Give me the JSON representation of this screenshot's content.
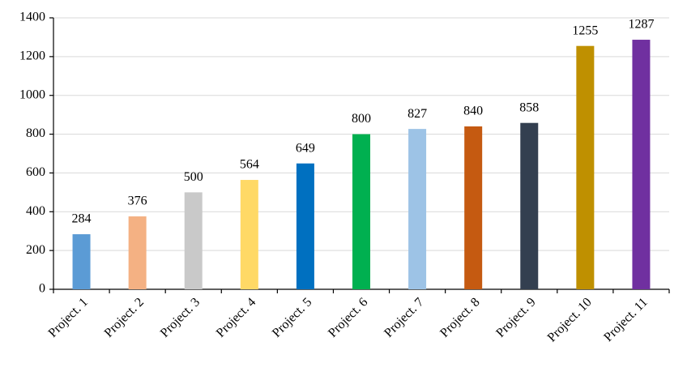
{
  "chart_data": {
    "type": "bar",
    "categories": [
      "Project. 1",
      "Project. 2",
      "Project. 3",
      "Project. 4",
      "Project. 5",
      "Project. 6",
      "Project. 7",
      "Project. 8",
      "Project. 9",
      "Project. 10",
      "Project. 11"
    ],
    "values": [
      284,
      376,
      500,
      564,
      649,
      800,
      827,
      840,
      858,
      1255,
      1287
    ],
    "colors": [
      "#5b9bd5",
      "#f4b183",
      "#c9c9c9",
      "#ffd966",
      "#0070c0",
      "#00b050",
      "#9dc3e6",
      "#c55a11",
      "#333f50",
      "#bf9000",
      "#7030a0"
    ],
    "ylim": [
      0,
      1400
    ],
    "yticks": [
      0,
      200,
      400,
      600,
      800,
      1000,
      1200,
      1400
    ],
    "grid": true
  }
}
